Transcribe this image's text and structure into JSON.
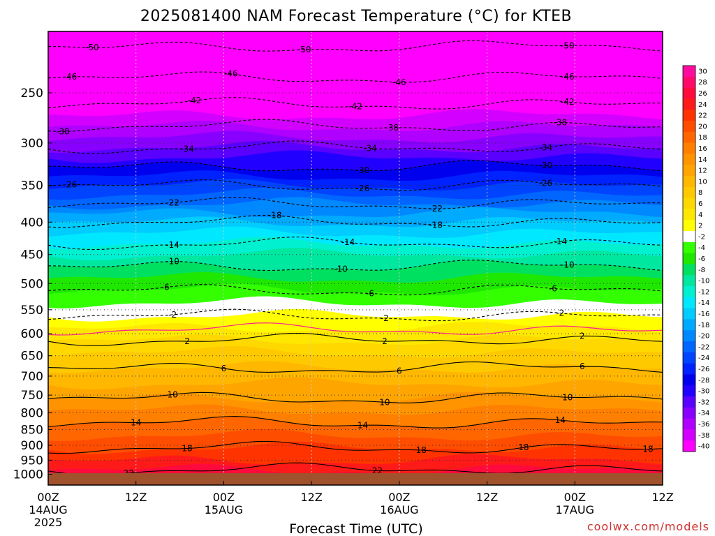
{
  "chart_data": {
    "type": "heatmap",
    "title": "2025081400 NAM Forecast Temperature (°C) for KTEB",
    "xlabel": "Forecast Time (UTC)",
    "credit": "coolwx.com/models",
    "y_scale": "log-pressure",
    "y_range_hPa": [
      1040,
      200
    ],
    "x_range_hours": [
      0,
      84
    ],
    "grid": true,
    "pressure_ticks": [
      "250",
      "300",
      "350",
      "400",
      "450",
      "500",
      "550",
      "600",
      "650",
      "700",
      "750",
      "800",
      "850",
      "900",
      "950",
      "1000"
    ],
    "x_ticks": [
      {
        "hour": 0,
        "time": "00Z",
        "date": "14AUG",
        "year": "2025"
      },
      {
        "hour": 12,
        "time": "12Z",
        "date": "",
        "year": ""
      },
      {
        "hour": 24,
        "time": "00Z",
        "date": "15AUG",
        "year": ""
      },
      {
        "hour": 36,
        "time": "12Z",
        "date": "",
        "year": ""
      },
      {
        "hour": 48,
        "time": "00Z",
        "date": "16AUG",
        "year": ""
      },
      {
        "hour": 60,
        "time": "12Z",
        "date": "",
        "year": ""
      },
      {
        "hour": 72,
        "time": "00Z",
        "date": "17AUG",
        "year": ""
      },
      {
        "hour": 84,
        "time": "12Z",
        "date": "",
        "year": ""
      }
    ],
    "colorbar_labels": [
      "30",
      "28",
      "26",
      "24",
      "22",
      "20",
      "18",
      "16",
      "14",
      "12",
      "10",
      "8",
      "6",
      "4",
      "2",
      "-2",
      "-4",
      "-6",
      "-8",
      "-10",
      "-12",
      "-14",
      "-16",
      "-18",
      "-20",
      "-22",
      "-24",
      "-26",
      "-28",
      "-30",
      "-32",
      "-34",
      "-36",
      "-38",
      "-40"
    ],
    "colorbar_colors": [
      "#ff0a9f",
      "#ff0a6a",
      "#ff0a3c",
      "#ff1a1a",
      "#ff3300",
      "#ff4d00",
      "#ff6600",
      "#ff7f00",
      "#ff9400",
      "#ffa500",
      "#ffb700",
      "#ffc900",
      "#ffd800",
      "#ffe800",
      "#ffff00",
      "#ffffff",
      "#33ff00",
      "#1fe800",
      "#00e060",
      "#00e8a0",
      "#00f0d0",
      "#00e8ff",
      "#00ccff",
      "#00aaff",
      "#0088ff",
      "#0066ff",
      "#0044ff",
      "#0022ff",
      "#0000ee",
      "#2200ff",
      "#5a00ff",
      "#8800ff",
      "#b000ff",
      "#d400ff",
      "#ff00ff"
    ],
    "profile_hPa": [
      1000,
      950,
      900,
      850,
      800,
      750,
      700,
      650,
      600,
      550,
      500,
      450,
      400,
      350,
      300,
      250,
      200
    ],
    "profile_temp_C": [
      23,
      20,
      17.5,
      15,
      12.5,
      9.5,
      7,
      4.5,
      1,
      -3,
      -7,
      -12,
      -18,
      -26,
      -35,
      -44,
      -52
    ],
    "surface_hPa": 1013,
    "contours_solid": [
      {
        "level": "22",
        "label_x": [
          11,
          45
        ]
      },
      {
        "level": "18",
        "label_x": [
          19,
          51,
          65,
          82
        ]
      },
      {
        "level": "14",
        "label_x": [
          12,
          43,
          70
        ]
      },
      {
        "level": "10",
        "label_x": [
          17,
          46,
          71
        ]
      },
      {
        "level": "6",
        "label_x": [
          24,
          48,
          73
        ]
      },
      {
        "level": "2",
        "label_x": [
          19,
          46,
          73
        ]
      }
    ],
    "contours_dashed": [
      {
        "level": "-2",
        "label_x": [
          17,
          46,
          70
        ]
      },
      {
        "level": "-6",
        "label_x": [
          16,
          44,
          69
        ]
      },
      {
        "level": "-10",
        "label_x": [
          17,
          40,
          71
        ]
      },
      {
        "level": "-14",
        "label_x": [
          17,
          41,
          70
        ]
      },
      {
        "level": "-18",
        "label_x": [
          31,
          53
        ]
      },
      {
        "level": "-22",
        "label_x": [
          17,
          53
        ]
      },
      {
        "level": "-26",
        "label_x": [
          3,
          43,
          68
        ]
      },
      {
        "level": "-30",
        "label_x": [
          43,
          68
        ]
      },
      {
        "level": "-34",
        "label_x": [
          19,
          44,
          68
        ]
      },
      {
        "level": "-38",
        "label_x": [
          2,
          47,
          70
        ]
      },
      {
        "level": "-42",
        "label_x": [
          20,
          42,
          71
        ]
      },
      {
        "level": "-46",
        "label_x": [
          3,
          25,
          48,
          71
        ]
      },
      {
        "level": "-50",
        "label_x": [
          6,
          35,
          71
        ]
      }
    ]
  }
}
